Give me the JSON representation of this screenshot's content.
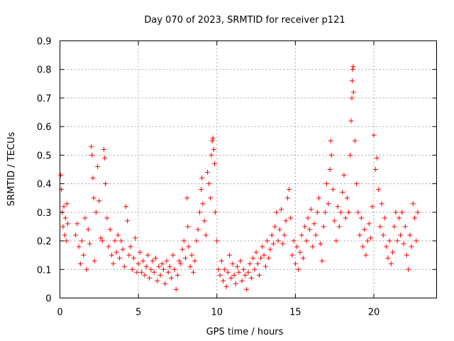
{
  "chart_data": {
    "type": "scatter",
    "title": "Day 070 of 2023, SRMTID for receiver p121",
    "xlabel": "GPS time / hours",
    "ylabel": "SRMTID / TECUs",
    "xlim": [
      0,
      24
    ],
    "ylim": [
      0,
      0.9
    ],
    "x_ticks": [
      0,
      5,
      10,
      15,
      20
    ],
    "x_tick_labels": [
      "0",
      "5",
      "10",
      "15",
      "20"
    ],
    "y_ticks": [
      0,
      0.1,
      0.2,
      0.3,
      0.4,
      0.5,
      0.6,
      0.7,
      0.8,
      0.9
    ],
    "y_tick_labels": [
      "0",
      "0.1",
      "0.2",
      "0.3",
      "0.4",
      "0.5",
      "0.6",
      "0.7",
      "0.8",
      "0.9"
    ],
    "grid": true,
    "marker": "+",
    "series": [
      {
        "name": "SRMTID",
        "color": "#ff0000",
        "points": [
          [
            0.05,
            0.43
          ],
          [
            0.1,
            0.38
          ],
          [
            0.15,
            0.3
          ],
          [
            0.2,
            0.25
          ],
          [
            0.25,
            0.32
          ],
          [
            0.3,
            0.22
          ],
          [
            0.35,
            0.28
          ],
          [
            0.4,
            0.2
          ],
          [
            0.45,
            0.33
          ],
          [
            0.5,
            0.26
          ],
          [
            1.0,
            0.22
          ],
          [
            1.1,
            0.26
          ],
          [
            1.2,
            0.18
          ],
          [
            1.3,
            0.12
          ],
          [
            1.4,
            0.2
          ],
          [
            1.5,
            0.15
          ],
          [
            1.6,
            0.28
          ],
          [
            1.7,
            0.1
          ],
          [
            1.8,
            0.24
          ],
          [
            1.9,
            0.19
          ],
          [
            2.0,
            0.53
          ],
          [
            2.05,
            0.5
          ],
          [
            2.1,
            0.42
          ],
          [
            2.15,
            0.35
          ],
          [
            2.2,
            0.13
          ],
          [
            2.3,
            0.3
          ],
          [
            2.4,
            0.46
          ],
          [
            2.5,
            0.34
          ],
          [
            2.6,
            0.21
          ],
          [
            2.7,
            0.2
          ],
          [
            2.8,
            0.52
          ],
          [
            2.85,
            0.49
          ],
          [
            2.9,
            0.4
          ],
          [
            3.0,
            0.28
          ],
          [
            3.1,
            0.18
          ],
          [
            3.2,
            0.24
          ],
          [
            3.3,
            0.15
          ],
          [
            3.4,
            0.12
          ],
          [
            3.5,
            0.2
          ],
          [
            3.6,
            0.16
          ],
          [
            3.7,
            0.22
          ],
          [
            3.8,
            0.14
          ],
          [
            3.9,
            0.2
          ],
          [
            4.0,
            0.17
          ],
          [
            4.1,
            0.11
          ],
          [
            4.2,
            0.32
          ],
          [
            4.3,
            0.27
          ],
          [
            4.4,
            0.15
          ],
          [
            4.5,
            0.18
          ],
          [
            4.6,
            0.1
          ],
          [
            4.7,
            0.14
          ],
          [
            4.8,
            0.21
          ],
          [
            4.9,
            0.09
          ],
          [
            5.0,
            0.12
          ],
          [
            5.1,
            0.16
          ],
          [
            5.2,
            0.09
          ],
          [
            5.3,
            0.13
          ],
          [
            5.4,
            0.08
          ],
          [
            5.5,
            0.11
          ],
          [
            5.6,
            0.15
          ],
          [
            5.7,
            0.07
          ],
          [
            5.8,
            0.1
          ],
          [
            5.9,
            0.13
          ],
          [
            6.0,
            0.09
          ],
          [
            6.1,
            0.14
          ],
          [
            6.2,
            0.06
          ],
          [
            6.3,
            0.11
          ],
          [
            6.4,
            0.08
          ],
          [
            6.5,
            0.12
          ],
          [
            6.6,
            0.1
          ],
          [
            6.7,
            0.05
          ],
          [
            6.8,
            0.13
          ],
          [
            6.9,
            0.09
          ],
          [
            7.0,
            0.11
          ],
          [
            7.1,
            0.07
          ],
          [
            7.2,
            0.15
          ],
          [
            7.3,
            0.1
          ],
          [
            7.4,
            0.03
          ],
          [
            7.5,
            0.08
          ],
          [
            7.6,
            0.13
          ],
          [
            7.7,
            0.12
          ],
          [
            7.8,
            0.17
          ],
          [
            7.9,
            0.2
          ],
          [
            8.0,
            0.14
          ],
          [
            8.1,
            0.35
          ],
          [
            8.15,
            0.25
          ],
          [
            8.2,
            0.18
          ],
          [
            8.3,
            0.11
          ],
          [
            8.4,
            0.15
          ],
          [
            8.5,
            0.09
          ],
          [
            8.6,
            0.13
          ],
          [
            8.7,
            0.2
          ],
          [
            8.8,
            0.24
          ],
          [
            8.9,
            0.3
          ],
          [
            9.0,
            0.38
          ],
          [
            9.05,
            0.42
          ],
          [
            9.1,
            0.33
          ],
          [
            9.2,
            0.27
          ],
          [
            9.3,
            0.22
          ],
          [
            9.4,
            0.44
          ],
          [
            9.5,
            0.4
          ],
          [
            9.6,
            0.35
          ],
          [
            9.65,
            0.5
          ],
          [
            9.7,
            0.55
          ],
          [
            9.75,
            0.56
          ],
          [
            9.8,
            0.52
          ],
          [
            9.85,
            0.47
          ],
          [
            9.9,
            0.3
          ],
          [
            10.0,
            0.2
          ],
          [
            10.1,
            0.1
          ],
          [
            10.2,
            0.08
          ],
          [
            10.3,
            0.13
          ],
          [
            10.4,
            0.06
          ],
          [
            10.5,
            0.1
          ],
          [
            10.6,
            0.04
          ],
          [
            10.7,
            0.09
          ],
          [
            10.8,
            0.15
          ],
          [
            10.9,
            0.07
          ],
          [
            11.0,
            0.12
          ],
          [
            11.1,
            0.08
          ],
          [
            11.2,
            0.05
          ],
          [
            11.3,
            0.11
          ],
          [
            11.4,
            0.09
          ],
          [
            11.5,
            0.13
          ],
          [
            11.6,
            0.06
          ],
          [
            11.7,
            0.1
          ],
          [
            11.8,
            0.08
          ],
          [
            11.9,
            0.03
          ],
          [
            12.0,
            0.09
          ],
          [
            12.1,
            0.12
          ],
          [
            12.2,
            0.07
          ],
          [
            12.3,
            0.14
          ],
          [
            12.4,
            0.1
          ],
          [
            12.5,
            0.16
          ],
          [
            12.6,
            0.12
          ],
          [
            12.7,
            0.08
          ],
          [
            12.8,
            0.14
          ],
          [
            12.9,
            0.18
          ],
          [
            13.0,
            0.15
          ],
          [
            13.1,
            0.11
          ],
          [
            13.2,
            0.2
          ],
          [
            13.3,
            0.14
          ],
          [
            13.4,
            0.17
          ],
          [
            13.5,
            0.22
          ],
          [
            13.6,
            0.19
          ],
          [
            13.7,
            0.25
          ],
          [
            13.8,
            0.3
          ],
          [
            13.9,
            0.2
          ],
          [
            14.0,
            0.24
          ],
          [
            14.1,
            0.31
          ],
          [
            14.2,
            0.19
          ],
          [
            14.3,
            0.22
          ],
          [
            14.4,
            0.27
          ],
          [
            14.5,
            0.35
          ],
          [
            14.6,
            0.38
          ],
          [
            14.7,
            0.28
          ],
          [
            14.8,
            0.15
          ],
          [
            14.9,
            0.2
          ],
          [
            15.0,
            0.12
          ],
          [
            15.1,
            0.18
          ],
          [
            15.2,
            0.1
          ],
          [
            15.3,
            0.16
          ],
          [
            15.4,
            0.22
          ],
          [
            15.5,
            0.14
          ],
          [
            15.6,
            0.25
          ],
          [
            15.7,
            0.2
          ],
          [
            15.8,
            0.28
          ],
          [
            15.9,
            0.24
          ],
          [
            16.0,
            0.31
          ],
          [
            16.1,
            0.18
          ],
          [
            16.2,
            0.26
          ],
          [
            16.3,
            0.22
          ],
          [
            16.4,
            0.3
          ],
          [
            16.5,
            0.35
          ],
          [
            16.6,
            0.19
          ],
          [
            16.7,
            0.13
          ],
          [
            16.8,
            0.25
          ],
          [
            16.9,
            0.3
          ],
          [
            17.0,
            0.4
          ],
          [
            17.1,
            0.33
          ],
          [
            17.2,
            0.45
          ],
          [
            17.25,
            0.55
          ],
          [
            17.3,
            0.5
          ],
          [
            17.4,
            0.38
          ],
          [
            17.5,
            0.27
          ],
          [
            17.6,
            0.2
          ],
          [
            17.7,
            0.32
          ],
          [
            17.8,
            0.25
          ],
          [
            17.9,
            0.3
          ],
          [
            18.0,
            0.37
          ],
          [
            18.1,
            0.43
          ],
          [
            18.2,
            0.28
          ],
          [
            18.3,
            0.35
          ],
          [
            18.4,
            0.3
          ],
          [
            18.5,
            0.5
          ],
          [
            18.55,
            0.62
          ],
          [
            18.6,
            0.7
          ],
          [
            18.62,
            0.76
          ],
          [
            18.65,
            0.8
          ],
          [
            18.68,
            0.81
          ],
          [
            18.7,
            0.72
          ],
          [
            18.8,
            0.55
          ],
          [
            18.9,
            0.4
          ],
          [
            19.0,
            0.3
          ],
          [
            19.1,
            0.22
          ],
          [
            19.2,
            0.28
          ],
          [
            19.3,
            0.18
          ],
          [
            19.4,
            0.24
          ],
          [
            19.5,
            0.15
          ],
          [
            19.6,
            0.2
          ],
          [
            19.7,
            0.26
          ],
          [
            19.8,
            0.21
          ],
          [
            19.9,
            0.32
          ],
          [
            20.0,
            0.57
          ],
          [
            20.1,
            0.45
          ],
          [
            20.2,
            0.49
          ],
          [
            20.3,
            0.38
          ],
          [
            20.4,
            0.25
          ],
          [
            20.5,
            0.33
          ],
          [
            20.6,
            0.22
          ],
          [
            20.7,
            0.28
          ],
          [
            20.8,
            0.18
          ],
          [
            20.9,
            0.14
          ],
          [
            21.0,
            0.2
          ],
          [
            21.1,
            0.12
          ],
          [
            21.2,
            0.16
          ],
          [
            21.3,
            0.25
          ],
          [
            21.4,
            0.3
          ],
          [
            21.5,
            0.2
          ],
          [
            21.6,
            0.28
          ],
          [
            21.7,
            0.22
          ],
          [
            21.8,
            0.3
          ],
          [
            21.9,
            0.19
          ],
          [
            22.0,
            0.25
          ],
          [
            22.1,
            0.15
          ],
          [
            22.2,
            0.1
          ],
          [
            22.3,
            0.22
          ],
          [
            22.4,
            0.18
          ],
          [
            22.5,
            0.33
          ],
          [
            22.6,
            0.28
          ],
          [
            22.7,
            0.2
          ],
          [
            22.8,
            0.3
          ]
        ]
      }
    ]
  }
}
